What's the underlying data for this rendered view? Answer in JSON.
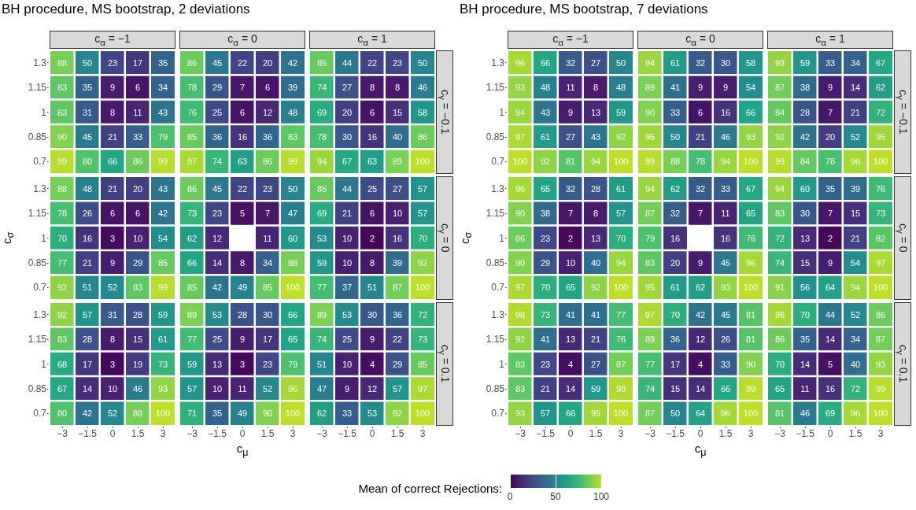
{
  "chart_data": [
    {
      "type": "heatmap",
      "annotations": [
        "BH procedure, MS bootstrap, 2 deviations"
      ],
      "title": "c$_{α}$ = −1",
      "tick_labels": "y",
      "data_labels": true,
      "clabel": "Mean of correct Rejections:",
      "clim": [
        0,
        100
      ],
      "cticks": [
        0,
        50,
        100
      ],
      "categories": [
        "−3",
        "−1.5",
        "0",
        "1.5",
        "3"
      ],
      "y_categories": [
        "1.3",
        "1.15",
        "1",
        "0.85",
        "0.7"
      ],
      "cells": [
        [
          88,
          50,
          23,
          17,
          35
        ],
        [
          83,
          35,
          9,
          6,
          34
        ],
        [
          83,
          31,
          8,
          11,
          43
        ],
        [
          90,
          45,
          21,
          33,
          79
        ],
        [
          99,
          80,
          66,
          86,
          99
        ]
      ]
    },
    {
      "type": "heatmap",
      "title": "c$_{α}$ = 0",
      "tick_labels": false,
      "data_labels": true,
      "categories": [
        "−3",
        "−1.5",
        "0",
        "1.5",
        "3"
      ],
      "y_categories": [
        "1.3",
        "1.15",
        "1",
        "0.85",
        "0.7"
      ],
      "cells": [
        [
          86,
          45,
          22,
          20,
          42
        ],
        [
          78,
          29,
          7,
          6,
          39
        ],
        [
          76,
          25,
          6,
          12,
          48
        ],
        [
          85,
          36,
          16,
          36,
          83
        ],
        [
          97,
          74,
          63,
          86,
          99
        ]
      ]
    },
    {
      "type": "heatmap",
      "title": "c$_{α}$ = 1",
      "y2label": "c$_{γ}$ = −0.1",
      "tick_labels": false,
      "data_labels": true,
      "categories": [
        "−3",
        "−1.5",
        "0",
        "1.5",
        "3"
      ],
      "y_categories": [
        "1.3",
        "1.15",
        "1",
        "0.85",
        "0.7"
      ],
      "cells": [
        [
          85,
          44,
          22,
          23,
          50
        ],
        [
          74,
          27,
          8,
          8,
          46
        ],
        [
          69,
          20,
          6,
          15,
          58
        ],
        [
          78,
          30,
          16,
          40,
          86
        ],
        [
          94,
          67,
          63,
          89,
          100
        ]
      ]
    },
    {
      "type": "heatmap",
      "ylabel": "c$_{σ}$",
      "tick_labels": "y",
      "data_labels": true,
      "categories": [
        "−3",
        "−1.5",
        "0",
        "1.5",
        "3"
      ],
      "y_categories": [
        "1.3",
        "1.15",
        "1",
        "0.85",
        "0.7"
      ],
      "cells": [
        [
          88,
          48,
          21,
          20,
          43
        ],
        [
          78,
          26,
          6,
          6,
          42
        ],
        [
          70,
          16,
          3,
          10,
          54
        ],
        [
          77,
          21,
          9,
          29,
          85
        ],
        [
          92,
          51,
          52,
          83,
          99
        ]
      ]
    },
    {
      "type": "heatmap",
      "tick_labels": false,
      "data_labels": true,
      "categories": [
        "−3",
        "−1.5",
        "0",
        "1.5",
        "3"
      ],
      "y_categories": [
        "1.3",
        "1.15",
        "1",
        "0.85",
        "0.7"
      ],
      "cells": [
        [
          86,
          45,
          22,
          23,
          50
        ],
        [
          73,
          23,
          5,
          7,
          47
        ],
        [
          62,
          12,
          null,
          11,
          60
        ],
        [
          66,
          14,
          8,
          34,
          88
        ],
        [
          85,
          42,
          49,
          85,
          100
        ]
      ]
    },
    {
      "type": "heatmap",
      "y2label": "c$_{γ}$ = 0",
      "tick_labels": false,
      "data_labels": true,
      "categories": [
        "−3",
        "−1.5",
        "0",
        "1.5",
        "3"
      ],
      "y_categories": [
        "1.3",
        "1.15",
        "1",
        "0.85",
        "0.7"
      ],
      "cells": [
        [
          85,
          44,
          25,
          27,
          57
        ],
        [
          69,
          21,
          6,
          10,
          57
        ],
        [
          53,
          10,
          2,
          16,
          70
        ],
        [
          59,
          10,
          8,
          39,
          92
        ],
        [
          77,
          37,
          51,
          87,
          100
        ]
      ]
    },
    {
      "type": "heatmap",
      "data_labels": true,
      "categories": [
        "−3",
        "−1.5",
        "0",
        "1.5",
        "3"
      ],
      "y_categories": [
        "1.3",
        "1.15",
        "1",
        "0.85",
        "0.7"
      ],
      "cells": [
        [
          92,
          57,
          31,
          28,
          59
        ],
        [
          83,
          28,
          8,
          15,
          61
        ],
        [
          68,
          17,
          3,
          19,
          73
        ],
        [
          67,
          14,
          10,
          46,
          93
        ],
        [
          80,
          42,
          52,
          88,
          100
        ]
      ]
    },
    {
      "type": "heatmap",
      "xlabel": "c$_{μ}$",
      "tick_labels": "x",
      "data_labels": true,
      "categories": [
        "−3",
        "−1.5",
        "0",
        "1.5",
        "3"
      ],
      "y_categories": [
        "1.3",
        "1.15",
        "1",
        "0.85",
        "0.7"
      ],
      "cells": [
        [
          89,
          53,
          28,
          30,
          66
        ],
        [
          77,
          25,
          9,
          17,
          65
        ],
        [
          59,
          13,
          3,
          23,
          79
        ],
        [
          57,
          10,
          11,
          52,
          96
        ],
        [
          71,
          35,
          49,
          90,
          100
        ]
      ]
    },
    {
      "type": "heatmap",
      "y2label": "c$_{γ}$ = 0.1",
      "tick_labels": "x",
      "data_labels": true,
      "categories": [
        "−3",
        "−1.5",
        "0",
        "1.5",
        "3"
      ],
      "y_categories": [
        "1.3",
        "1.15",
        "1",
        "0.85",
        "0.7"
      ],
      "cells": [
        [
          89,
          53,
          30,
          36,
          72
        ],
        [
          74,
          25,
          9,
          22,
          73
        ],
        [
          51,
          10,
          4,
          29,
          85
        ],
        [
          47,
          9,
          12,
          57,
          97
        ],
        [
          62,
          33,
          53,
          92,
          100
        ]
      ]
    },
    {
      "type": "heatmap",
      "annotations": [
        "BH procedure, MS bootstrap, 7 deviations"
      ],
      "title": "c$_{α}$ = −1",
      "tick_labels": "y",
      "data_labels": true,
      "categories": [
        "−3",
        "−1.5",
        "0",
        "1.5",
        "3"
      ],
      "y_categories": [
        "1.3",
        "1.15",
        "1",
        "0.85",
        "0.7"
      ],
      "cells": [
        [
          96,
          66,
          32,
          27,
          50
        ],
        [
          93,
          48,
          11,
          8,
          48
        ],
        [
          94,
          43,
          9,
          13,
          59
        ],
        [
          97,
          61,
          27,
          43,
          92
        ],
        [
          100,
          92,
          81,
          94,
          100
        ]
      ]
    },
    {
      "type": "heatmap",
      "title": "c$_{α}$ = 0",
      "tick_labels": false,
      "data_labels": true,
      "categories": [
        "−3",
        "−1.5",
        "0",
        "1.5",
        "3"
      ],
      "y_categories": [
        "1.3",
        "1.15",
        "1",
        "0.85",
        "0.7"
      ],
      "cells": [
        [
          94,
          61,
          32,
          30,
          58
        ],
        [
          89,
          41,
          9,
          9,
          54
        ],
        [
          90,
          33,
          6,
          16,
          66
        ],
        [
          95,
          50,
          21,
          46,
          93
        ],
        [
          99,
          88,
          78,
          94,
          100
        ]
      ]
    },
    {
      "type": "heatmap",
      "title": "c$_{α}$ = 1",
      "y2label": "c$_{γ}$ = −0.1",
      "tick_labels": false,
      "data_labels": true,
      "categories": [
        "−3",
        "−1.5",
        "0",
        "1.5",
        "3"
      ],
      "y_categories": [
        "1.3",
        "1.15",
        "1",
        "0.85",
        "0.7"
      ],
      "cells": [
        [
          93,
          59,
          33,
          34,
          67
        ],
        [
          87,
          38,
          9,
          14,
          62
        ],
        [
          84,
          28,
          7,
          21,
          72
        ],
        [
          92,
          42,
          20,
          52,
          95
        ],
        [
          99,
          84,
          78,
          96,
          100
        ]
      ]
    },
    {
      "type": "heatmap",
      "ylabel": "c$_{σ}$",
      "tick_labels": "y",
      "data_labels": true,
      "categories": [
        "−3",
        "−1.5",
        "0",
        "1.5",
        "3"
      ],
      "y_categories": [
        "1.3",
        "1.15",
        "1",
        "0.85",
        "0.7"
      ],
      "cells": [
        [
          96,
          65,
          32,
          28,
          61
        ],
        [
          90,
          38,
          7,
          8,
          57
        ],
        [
          86,
          23,
          2,
          13,
          70
        ],
        [
          90,
          29,
          10,
          40,
          94
        ],
        [
          97,
          70,
          65,
          92,
          100
        ]
      ]
    },
    {
      "type": "heatmap",
      "tick_labels": false,
      "data_labels": true,
      "categories": [
        "−3",
        "−1.5",
        "0",
        "1.5",
        "3"
      ],
      "y_categories": [
        "1.3",
        "1.15",
        "1",
        "0.85",
        "0.7"
      ],
      "cells": [
        [
          94,
          62,
          32,
          33,
          67
        ],
        [
          87,
          32,
          7,
          11,
          65
        ],
        [
          79,
          16,
          null,
          16,
          76
        ],
        [
          83,
          20,
          9,
          45,
          96
        ],
        [
          95,
          61,
          62,
          93,
          100
        ]
      ]
    },
    {
      "type": "heatmap",
      "y2label": "c$_{γ}$ = 0",
      "tick_labels": false,
      "data_labels": true,
      "categories": [
        "−3",
        "−1.5",
        "0",
        "1.5",
        "3"
      ],
      "y_categories": [
        "1.3",
        "1.15",
        "1",
        "0.85",
        "0.7"
      ],
      "cells": [
        [
          94,
          60,
          35,
          39,
          76
        ],
        [
          83,
          30,
          7,
          15,
          73
        ],
        [
          72,
          13,
          2,
          21,
          82
        ],
        [
          74,
          15,
          9,
          54,
          97
        ],
        [
          91,
          56,
          64,
          94,
          100
        ]
      ]
    },
    {
      "type": "heatmap",
      "data_labels": true,
      "categories": [
        "−3",
        "−1.5",
        "0",
        "1.5",
        "3"
      ],
      "y_categories": [
        "1.3",
        "1.15",
        "1",
        "0.85",
        "0.7"
      ],
      "cells": [
        [
          98,
          73,
          41,
          41,
          77
        ],
        [
          92,
          41,
          13,
          21,
          76
        ],
        [
          83,
          23,
          4,
          27,
          87
        ],
        [
          83,
          21,
          14,
          59,
          98
        ],
        [
          93,
          57,
          66,
          95,
          100
        ]
      ]
    },
    {
      "type": "heatmap",
      "xlabel": "c$_{μ}$",
      "tick_labels": "x",
      "data_labels": true,
      "categories": [
        "−3",
        "−1.5",
        "0",
        "1.5",
        "3"
      ],
      "y_categories": [
        "1.3",
        "1.15",
        "1",
        "0.85",
        "0.7"
      ],
      "cells": [
        [
          97,
          70,
          42,
          45,
          81
        ],
        [
          89,
          36,
          12,
          26,
          81
        ],
        [
          77,
          17,
          4,
          33,
          90
        ],
        [
          74,
          15,
          14,
          66,
          99
        ],
        [
          87,
          50,
          64,
          96,
          100
        ]
      ]
    },
    {
      "type": "heatmap",
      "y2label": "c$_{γ}$ = 0.1",
      "tick_labels": "x",
      "data_labels": true,
      "categories": [
        "−3",
        "−1.5",
        "0",
        "1.5",
        "3"
      ],
      "y_categories": [
        "1.3",
        "1.15",
        "1",
        "0.85",
        "0.7"
      ],
      "cells": [
        [
          96,
          70,
          44,
          52,
          86
        ],
        [
          86,
          35,
          14,
          34,
          87
        ],
        [
          70,
          14,
          5,
          40,
          93
        ],
        [
          65,
          11,
          16,
          72,
          99
        ],
        [
          81,
          46,
          69,
          96,
          100
        ]
      ]
    }
  ]
}
